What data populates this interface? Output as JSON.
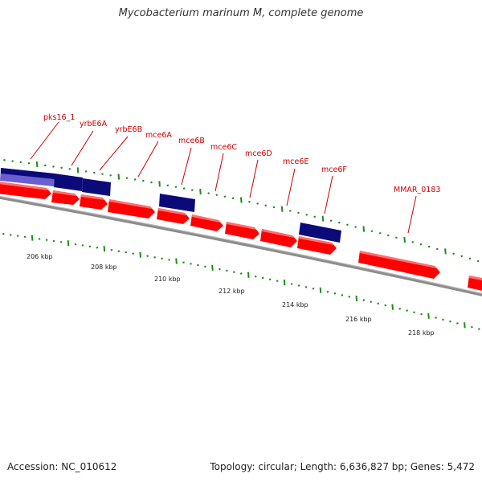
{
  "title": "Mycobacterium marinum M, complete genome",
  "accession": "Accession: NC_010612",
  "topology": "Topology: circular; Length: 6,636,827 bp; Genes: 5,472",
  "colors": {
    "backbone": "#8c8c8c",
    "forward_gene": "#ff0000",
    "feature_dark": "#0a0a78",
    "feature_light": "#6a5fd0",
    "tick_green": "#1a8c1a",
    "label_red": "#cc0000"
  },
  "kbp_labels": [
    "206 kbp",
    "208 kbp",
    "210 kbp",
    "212 kbp",
    "214 kbp",
    "216 kbp",
    "218 kbp"
  ],
  "gene_labels": [
    "pks16_1",
    "yrbE6A",
    "yrbE6B",
    "mce6A",
    "mce6B",
    "mce6C",
    "mce6D",
    "mce6E",
    "mce6F",
    "MMAR_0183"
  ]
}
